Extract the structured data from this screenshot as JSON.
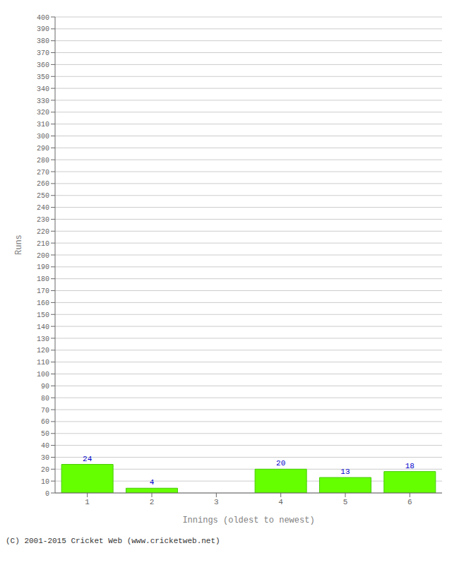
{
  "chart_data": {
    "type": "bar",
    "categories": [
      "1",
      "2",
      "3",
      "4",
      "5",
      "6"
    ],
    "values": [
      24,
      4,
      0,
      20,
      13,
      18
    ],
    "color": "#66ff00",
    "xlabel": "Innings (oldest to newest)",
    "ylabel": "Runs",
    "footer": "(C) 2001-2015 Cricket Web (www.cricketweb.net)",
    "ylim": [
      0,
      400
    ],
    "yticks": [
      0,
      10,
      20,
      30,
      40,
      50,
      60,
      70,
      80,
      90,
      100,
      110,
      120,
      130,
      140,
      150,
      160,
      170,
      180,
      190,
      200,
      210,
      220,
      230,
      240,
      250,
      260,
      270,
      280,
      290,
      300,
      310,
      320,
      330,
      340,
      350,
      360,
      370,
      380,
      390,
      400
    ],
    "grid": true,
    "data_labels": true
  }
}
